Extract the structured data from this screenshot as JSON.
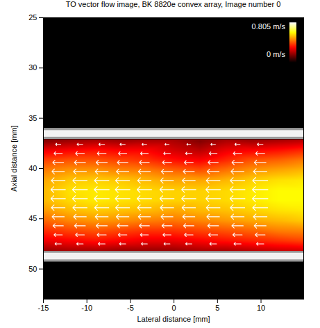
{
  "chart_data": {
    "type": "vector_flow",
    "title": "TO vector flow image, BK 8820e convex array, Image number 0",
    "x_label": "Lateral distance [mm]",
    "y_label": "Axial distance [mm]",
    "xlim": [
      -15,
      14.9
    ],
    "xticks": [
      -15,
      -10,
      -5,
      0,
      5,
      10
    ],
    "ylim": [
      25,
      53
    ],
    "yticks": [
      25,
      30,
      35,
      40,
      45,
      50
    ],
    "vessel_walls": [
      [
        36,
        37.1
      ],
      [
        48.2,
        49.3
      ]
    ],
    "heatmap": {
      "color": "hot",
      "x": [
        -15,
        -12,
        -9,
        -6,
        -3,
        0,
        3,
        6,
        9,
        12,
        15
      ],
      "y": [
        37.2,
        38.2,
        39.2,
        40.2,
        41.2,
        42.2,
        43.2,
        44.2,
        45.2,
        46.2,
        47.2,
        48.2
      ],
      "values": [
        [
          0.15,
          0.18,
          0.2,
          0.18,
          0.2,
          0.2,
          0.15,
          0.2,
          0.18,
          0.2,
          0.22
        ],
        [
          0.28,
          0.3,
          0.32,
          0.3,
          0.3,
          0.25,
          0.22,
          0.28,
          0.3,
          0.32,
          0.35
        ],
        [
          0.38,
          0.4,
          0.4,
          0.38,
          0.36,
          0.32,
          0.3,
          0.35,
          0.4,
          0.42,
          0.45
        ],
        [
          0.45,
          0.48,
          0.48,
          0.46,
          0.45,
          0.42,
          0.4,
          0.44,
          0.48,
          0.5,
          0.52
        ],
        [
          0.5,
          0.54,
          0.55,
          0.54,
          0.52,
          0.5,
          0.5,
          0.52,
          0.55,
          0.57,
          0.58
        ],
        [
          0.52,
          0.57,
          0.58,
          0.57,
          0.56,
          0.55,
          0.55,
          0.56,
          0.58,
          0.6,
          0.6
        ],
        [
          0.52,
          0.56,
          0.58,
          0.57,
          0.56,
          0.55,
          0.55,
          0.56,
          0.58,
          0.6,
          0.6
        ],
        [
          0.48,
          0.52,
          0.54,
          0.53,
          0.52,
          0.5,
          0.52,
          0.53,
          0.55,
          0.57,
          0.58
        ],
        [
          0.42,
          0.46,
          0.48,
          0.47,
          0.45,
          0.44,
          0.46,
          0.48,
          0.5,
          0.52,
          0.54
        ],
        [
          0.35,
          0.38,
          0.4,
          0.38,
          0.36,
          0.36,
          0.38,
          0.4,
          0.42,
          0.45,
          0.46
        ],
        [
          0.28,
          0.3,
          0.32,
          0.3,
          0.28,
          0.28,
          0.3,
          0.32,
          0.34,
          0.36,
          0.38
        ],
        [
          0.18,
          0.2,
          0.2,
          0.18,
          0.18,
          0.18,
          0.2,
          0.2,
          0.22,
          0.24,
          0.25
        ]
      ],
      "colorbar_range": [
        0,
        0.805
      ],
      "colorbar_ticks": [
        {
          "value": 0.805,
          "label": "0.805 m/s"
        },
        {
          "value": 0,
          "label": "0 m/s"
        }
      ]
    },
    "vectors": {
      "color": "white",
      "x": [
        -13.3,
        -10.8,
        -8.3,
        -5.9,
        -3.4,
        -0.8,
        1.7,
        4.5,
        7.3,
        9.9
      ],
      "y": [
        37.6,
        38.5,
        39.4,
        40.3,
        41.2,
        42.1,
        43.0,
        43.9,
        44.8,
        45.7,
        46.6,
        47.5
      ],
      "vx": [
        [
          -0.2,
          -0.22,
          -0.22,
          -0.2,
          -0.18,
          -0.16,
          -0.15,
          -0.18,
          -0.2,
          -0.22
        ],
        [
          -0.32,
          -0.34,
          -0.34,
          -0.32,
          -0.3,
          -0.26,
          -0.25,
          -0.3,
          -0.33,
          -0.35
        ],
        [
          -0.42,
          -0.43,
          -0.43,
          -0.41,
          -0.38,
          -0.35,
          -0.34,
          -0.39,
          -0.43,
          -0.45
        ],
        [
          -0.48,
          -0.5,
          -0.5,
          -0.48,
          -0.46,
          -0.44,
          -0.43,
          -0.46,
          -0.5,
          -0.52
        ],
        [
          -0.53,
          -0.55,
          -0.56,
          -0.54,
          -0.52,
          -0.5,
          -0.5,
          -0.53,
          -0.56,
          -0.58
        ],
        [
          -0.56,
          -0.58,
          -0.58,
          -0.57,
          -0.56,
          -0.55,
          -0.55,
          -0.56,
          -0.58,
          -0.6
        ],
        [
          -0.56,
          -0.58,
          -0.58,
          -0.57,
          -0.56,
          -0.55,
          -0.55,
          -0.56,
          -0.58,
          -0.6
        ],
        [
          -0.53,
          -0.55,
          -0.55,
          -0.54,
          -0.53,
          -0.52,
          -0.52,
          -0.53,
          -0.56,
          -0.58
        ],
        [
          -0.47,
          -0.49,
          -0.5,
          -0.49,
          -0.47,
          -0.46,
          -0.47,
          -0.49,
          -0.51,
          -0.53
        ],
        [
          -0.4,
          -0.42,
          -0.43,
          -0.41,
          -0.39,
          -0.39,
          -0.4,
          -0.42,
          -0.44,
          -0.46
        ],
        [
          -0.32,
          -0.34,
          -0.35,
          -0.33,
          -0.31,
          -0.31,
          -0.33,
          -0.35,
          -0.36,
          -0.38
        ],
        [
          -0.24,
          -0.25,
          -0.26,
          -0.24,
          -0.23,
          -0.23,
          -0.24,
          -0.26,
          -0.27,
          -0.28
        ]
      ]
    }
  }
}
